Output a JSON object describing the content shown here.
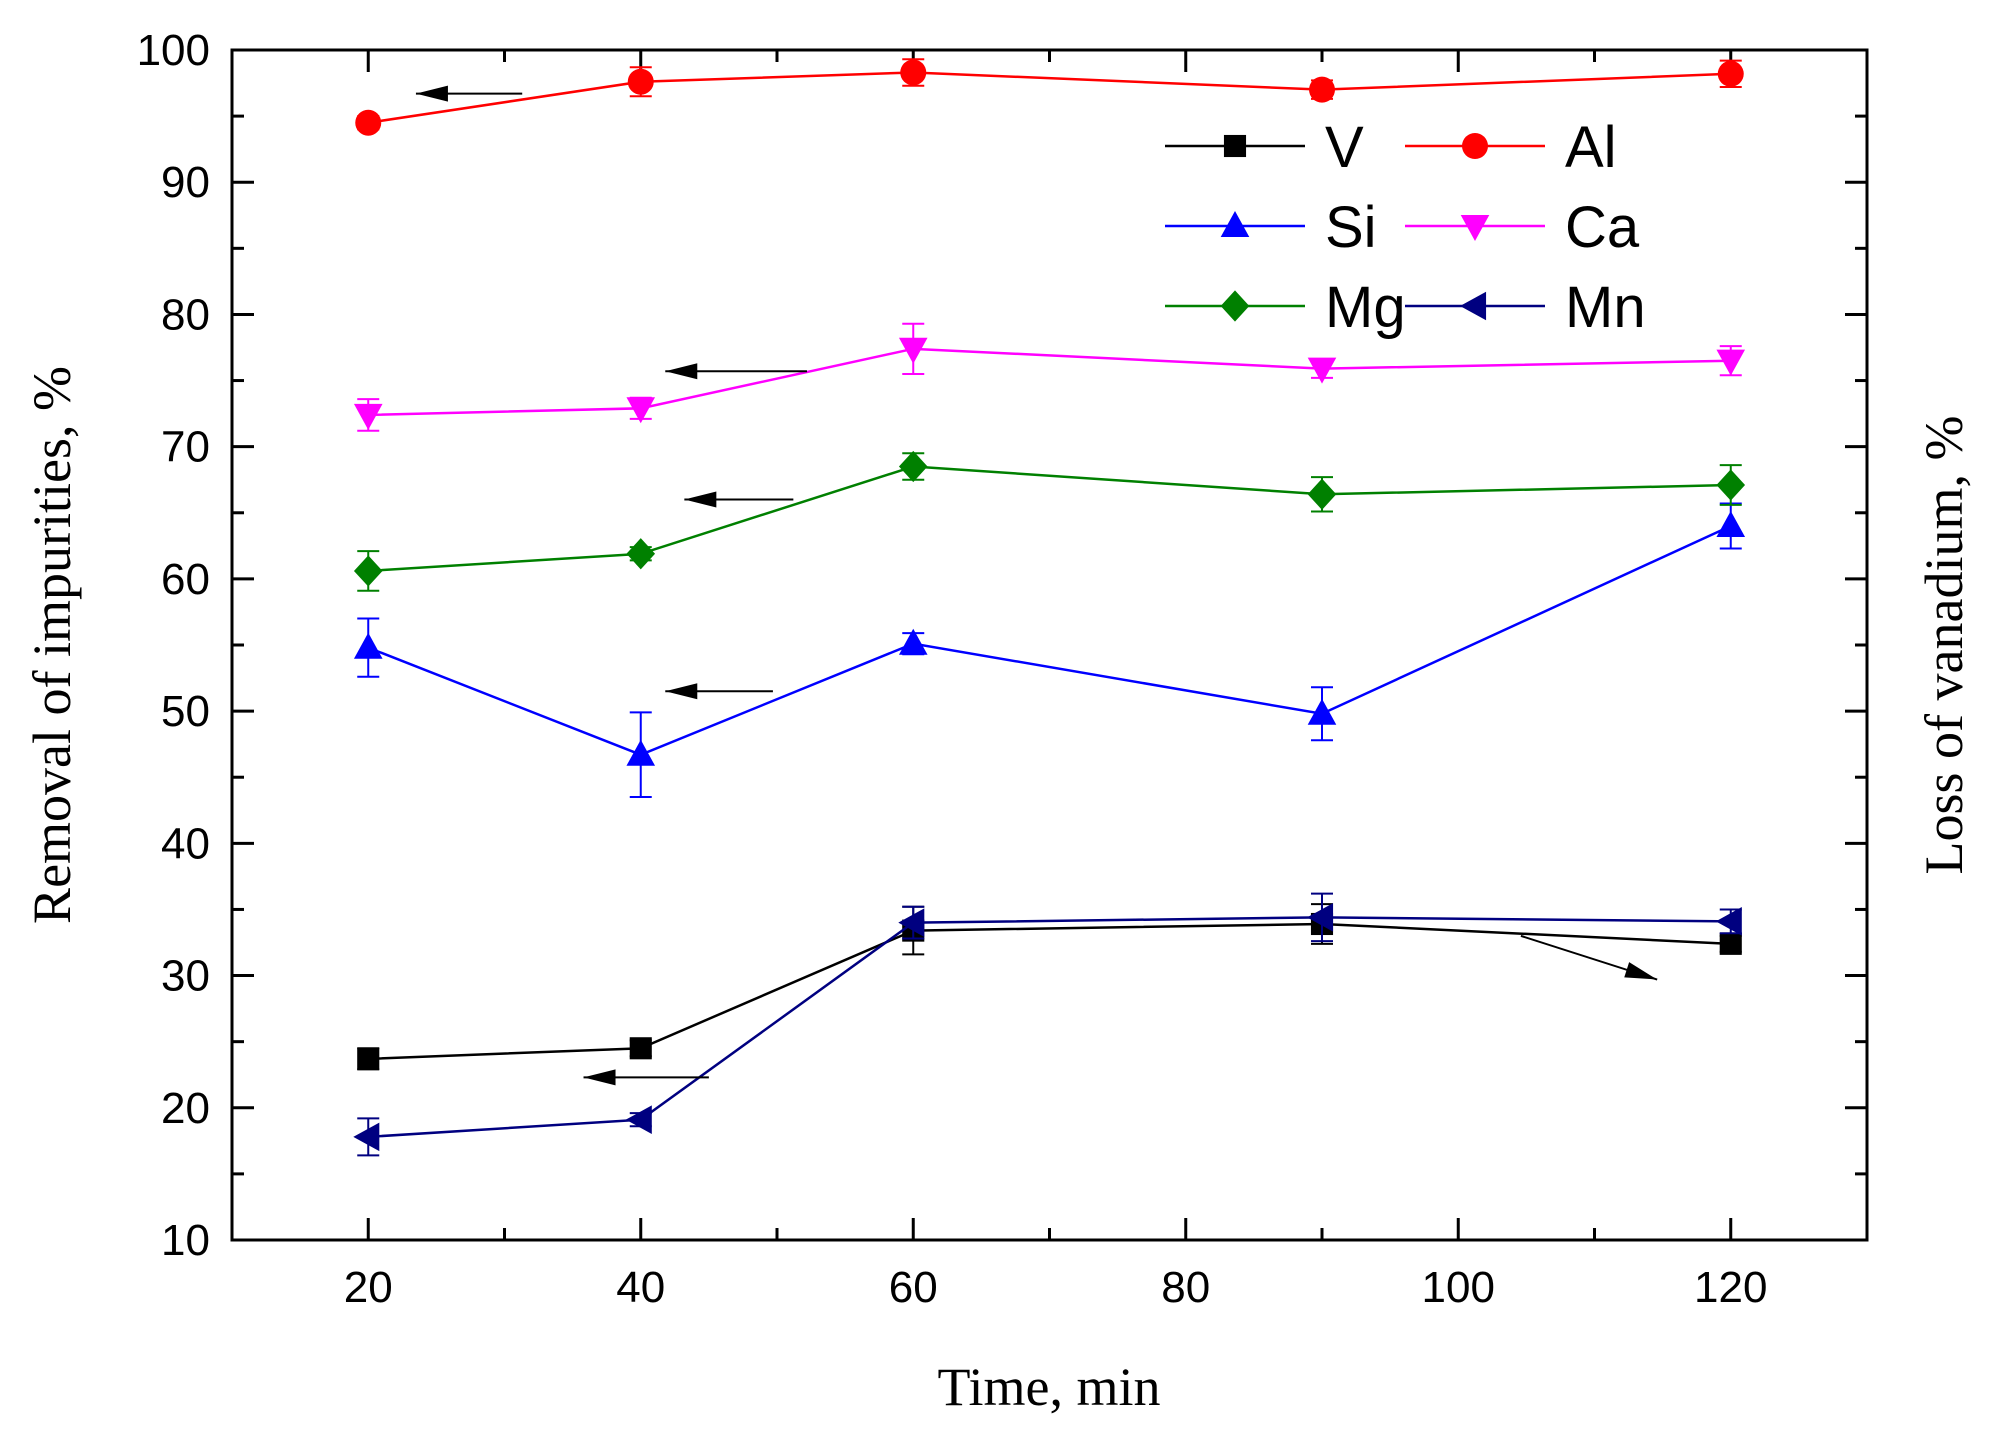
{
  "chart_data": {
    "type": "line",
    "title": "",
    "xlabel": "Time, min",
    "ylabel": "Removal of impurities, %",
    "y2label": "Loss of vanadium, %",
    "xlim": [
      10,
      130
    ],
    "ylim": [
      10,
      100
    ],
    "xticks": [
      20,
      40,
      60,
      80,
      100,
      120
    ],
    "yticks": [
      10,
      20,
      30,
      40,
      50,
      60,
      70,
      80,
      90,
      100
    ],
    "legend_position": "top-right",
    "x": [
      20,
      40,
      60,
      90,
      120
    ],
    "series": [
      {
        "name": "V",
        "color": "#000000",
        "marker": "square",
        "axis": "right",
        "values": [
          23.7,
          24.5,
          33.4,
          33.9,
          32.4
        ],
        "errors": [
          0.8,
          0.6,
          1.8,
          1.5,
          0.6
        ]
      },
      {
        "name": "Al",
        "color": "#ff0000",
        "marker": "circle",
        "axis": "left",
        "values": [
          94.5,
          97.6,
          98.3,
          97.0,
          98.2
        ],
        "errors": [
          0.5,
          1.1,
          1.0,
          0.7,
          1.0
        ]
      },
      {
        "name": "Si",
        "color": "#0000ff",
        "marker": "triangle-up",
        "axis": "left",
        "values": [
          54.8,
          46.7,
          55.1,
          49.8,
          64.0
        ],
        "errors": [
          2.2,
          3.2,
          0.8,
          2.0,
          1.7
        ]
      },
      {
        "name": "Ca",
        "color": "#ff00ff",
        "marker": "triangle-down",
        "axis": "left",
        "values": [
          72.4,
          72.9,
          77.4,
          75.9,
          76.5
        ],
        "errors": [
          1.2,
          0.8,
          1.9,
          0.7,
          1.1
        ]
      },
      {
        "name": "Mg",
        "color": "#008000",
        "marker": "diamond",
        "axis": "left",
        "values": [
          60.6,
          61.9,
          68.5,
          66.4,
          67.1
        ],
        "errors": [
          1.5,
          0.5,
          1.0,
          1.3,
          1.5
        ]
      },
      {
        "name": "Mn",
        "color": "#000080",
        "marker": "triangle-left",
        "axis": "left",
        "values": [
          17.8,
          19.1,
          34.0,
          34.4,
          34.1
        ],
        "errors": [
          1.4,
          0.5,
          1.2,
          1.8,
          0.9
        ]
      }
    ],
    "annotations": [
      {
        "type": "arrow",
        "direction": "left",
        "target_axis": "left",
        "from": [
          31.3,
          96.7
        ],
        "to": [
          23.5,
          96.7
        ]
      },
      {
        "type": "arrow",
        "direction": "left",
        "target_axis": "left",
        "from": [
          52.2,
          75.7
        ],
        "to": [
          41.8,
          75.7
        ]
      },
      {
        "type": "arrow",
        "direction": "left",
        "target_axis": "left",
        "from": [
          51.2,
          66.0
        ],
        "to": [
          43.2,
          66.0
        ]
      },
      {
        "type": "arrow",
        "direction": "left",
        "target_axis": "left",
        "from": [
          49.7,
          51.5
        ],
        "to": [
          41.8,
          51.5
        ]
      },
      {
        "type": "arrow",
        "direction": "left",
        "target_axis": "left",
        "from": [
          45.0,
          22.3
        ],
        "to": [
          35.8,
          22.3
        ]
      },
      {
        "type": "arrow",
        "direction": "right",
        "target_axis": "right",
        "from": [
          104.6,
          33.0
        ],
        "to": [
          114.6,
          29.7
        ]
      }
    ]
  }
}
